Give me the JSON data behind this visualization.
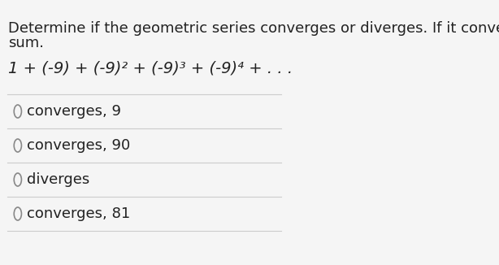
{
  "background_color": "#f5f5f5",
  "question_line1": "Determine if the geometric series converges or diverges. If it converges, find its",
  "question_line2": "sum.",
  "series_text": "1 + (-9) + (-9)² + (-9)³ + (-9)⁴ + . . .",
  "options": [
    "converges, 9",
    "converges, 90",
    "diverges",
    "converges, 81"
  ],
  "divider_color": "#cccccc",
  "text_color": "#222222",
  "circle_color": "#888888",
  "font_size_question": 13,
  "font_size_series": 14,
  "font_size_options": 13
}
